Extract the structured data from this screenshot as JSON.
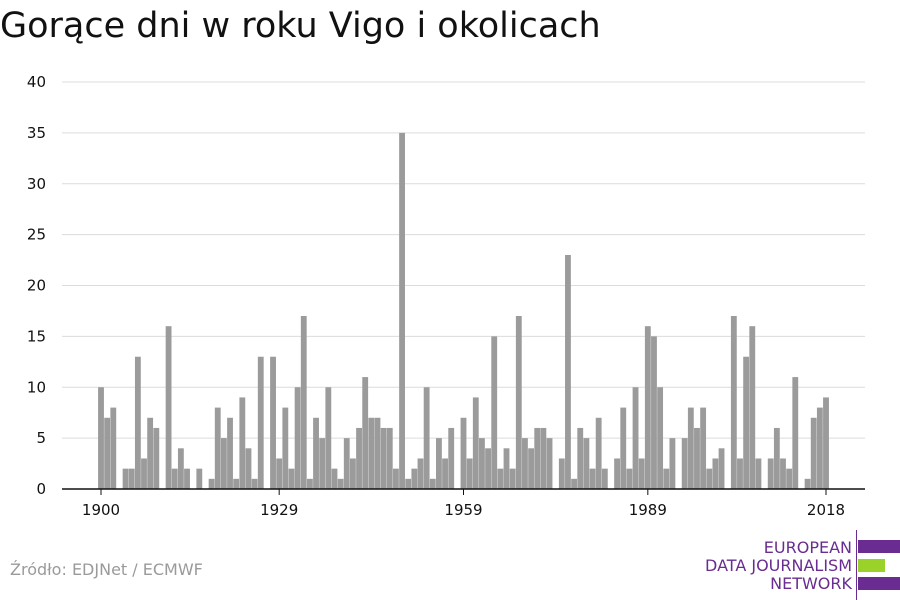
{
  "title": "Gorące dni w roku Vigo i okolicach",
  "source": "Źródło: EDJNet / ECMWF",
  "logo": {
    "line1": "EUROPEAN",
    "line2": "DATA JOURNALISM",
    "line3": "NETWORK",
    "colors": {
      "text": "#6a2c91",
      "purple": "#6a2c91",
      "green": "#9ad22a"
    }
  },
  "chart_data": {
    "type": "bar",
    "x_start": 1900,
    "x_end": 2018,
    "xticks": [
      "1900",
      "1929",
      "1959",
      "1989",
      "2018"
    ],
    "yticks": [
      "0",
      "5",
      "10",
      "15",
      "20",
      "25",
      "30",
      "35",
      "40"
    ],
    "ylim": [
      0,
      40
    ],
    "grid": true,
    "bar_color": "#9b9b9b",
    "values": [
      10,
      7,
      8,
      0,
      2,
      2,
      13,
      3,
      7,
      6,
      0,
      16,
      2,
      4,
      2,
      0,
      2,
      0,
      1,
      8,
      5,
      7,
      1,
      9,
      4,
      1,
      13,
      0,
      13,
      3,
      8,
      2,
      10,
      17,
      1,
      7,
      5,
      10,
      2,
      1,
      5,
      3,
      6,
      11,
      7,
      7,
      6,
      6,
      2,
      35,
      1,
      2,
      3,
      10,
      1,
      5,
      3,
      6,
      0,
      7,
      3,
      9,
      5,
      4,
      15,
      2,
      4,
      2,
      17,
      5,
      4,
      6,
      6,
      5,
      0,
      3,
      23,
      1,
      6,
      5,
      2,
      7,
      2,
      0,
      3,
      8,
      2,
      10,
      3,
      16,
      15,
      10,
      2,
      5,
      0,
      5,
      8,
      6,
      8,
      2,
      3,
      4,
      0,
      17,
      3,
      13,
      16,
      3,
      0,
      3,
      6,
      3,
      2,
      11,
      0,
      1,
      7,
      8,
      9
    ]
  }
}
